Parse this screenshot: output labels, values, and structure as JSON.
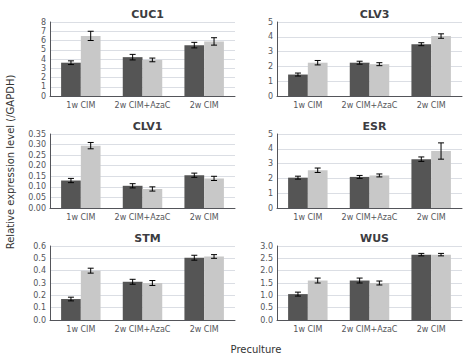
{
  "ylabel": "Relative expression level (/GAPDH)",
  "xlabel": "Preculture",
  "chart_data": [
    {
      "type": "bar",
      "title": "CUC1",
      "categories": [
        "1w CIM",
        "2w CIM+AzaC",
        "2w CIM"
      ],
      "series": [
        {
          "color": "#555555",
          "values": [
            3.6,
            4.2,
            5.5
          ],
          "errors": [
            0.2,
            0.3,
            0.3
          ]
        },
        {
          "color": "#c8c8c8",
          "values": [
            6.5,
            3.9,
            5.9
          ],
          "errors": [
            0.5,
            0.2,
            0.4
          ]
        }
      ],
      "ylim": [
        0,
        8
      ],
      "yticks": [
        0,
        1,
        2,
        3,
        4,
        5,
        6,
        7,
        8
      ],
      "grid": true
    },
    {
      "type": "bar",
      "title": "CLV3",
      "categories": [
        "1w CIM",
        "2w CIM+AzaC",
        "2w CIM"
      ],
      "series": [
        {
          "color": "#555555",
          "values": [
            1.45,
            2.25,
            3.5
          ],
          "errors": [
            0.1,
            0.1,
            0.1
          ]
        },
        {
          "color": "#c8c8c8",
          "values": [
            2.25,
            2.15,
            4.05
          ],
          "errors": [
            0.15,
            0.1,
            0.15
          ]
        }
      ],
      "ylim": [
        0,
        5
      ],
      "yticks": [
        0,
        1,
        2,
        3,
        4,
        5
      ],
      "grid": true
    },
    {
      "type": "bar",
      "title": "CLV1",
      "categories": [
        "1w CIM",
        "2w CIM+AzaC",
        "2w CIM"
      ],
      "series": [
        {
          "color": "#555555",
          "values": [
            0.13,
            0.105,
            0.155
          ],
          "errors": [
            0.01,
            0.01,
            0.01
          ]
        },
        {
          "color": "#c8c8c8",
          "values": [
            0.295,
            0.09,
            0.14
          ],
          "errors": [
            0.015,
            0.01,
            0.01
          ]
        }
      ],
      "ylim": [
        0,
        0.35
      ],
      "yticks": [
        {
          "value": 0,
          "label": "0.00"
        },
        0.05,
        {
          "value": 0.1,
          "label": "0.10"
        },
        0.15,
        {
          "value": 0.2,
          "label": "0.20"
        },
        0.25,
        {
          "value": 0.3,
          "label": "0.30"
        },
        0.35
      ],
      "grid": true
    },
    {
      "type": "bar",
      "title": "ESR",
      "categories": [
        "1w CIM",
        "2w CIM+AzaC",
        "2w CIM"
      ],
      "series": [
        {
          "color": "#555555",
          "values": [
            2.05,
            2.1,
            3.3
          ],
          "errors": [
            0.1,
            0.1,
            0.15
          ]
        },
        {
          "color": "#c8c8c8",
          "values": [
            2.55,
            2.2,
            3.85
          ],
          "errors": [
            0.15,
            0.1,
            0.55
          ]
        }
      ],
      "ylim": [
        0,
        5
      ],
      "yticks": [
        0,
        1,
        2,
        3,
        4,
        5
      ],
      "grid": true
    },
    {
      "type": "bar",
      "title": "STM",
      "categories": [
        "1w CIM",
        "2w CIM+AzaC",
        "2w CIM"
      ],
      "series": [
        {
          "color": "#555555",
          "values": [
            0.17,
            0.31,
            0.505
          ],
          "errors": [
            0.015,
            0.02,
            0.02
          ]
        },
        {
          "color": "#c8c8c8",
          "values": [
            0.4,
            0.3,
            0.515
          ],
          "errors": [
            0.02,
            0.02,
            0.015
          ]
        }
      ],
      "ylim": [
        0,
        0.6
      ],
      "yticks": [
        {
          "value": 0,
          "label": "0.0"
        },
        0.1,
        0.2,
        0.3,
        0.4,
        0.5,
        0.6
      ],
      "grid": true
    },
    {
      "type": "bar",
      "title": "WUS",
      "categories": [
        "1w CIM",
        "2w CIM+AzaC",
        "2w CIM"
      ],
      "series": [
        {
          "color": "#555555",
          "values": [
            1.05,
            1.6,
            2.65
          ],
          "errors": [
            0.08,
            0.1,
            0.05
          ]
        },
        {
          "color": "#c8c8c8",
          "values": [
            1.6,
            1.5,
            2.65
          ],
          "errors": [
            0.1,
            0.08,
            0.05
          ]
        }
      ],
      "ylim": [
        0,
        3
      ],
      "yticks": [
        {
          "value": 0,
          "label": "0.0"
        },
        0.5,
        {
          "value": 1,
          "label": "1.0"
        },
        1.5,
        {
          "value": 2,
          "label": "2.0"
        },
        2.5,
        {
          "value": 3,
          "label": "3.0"
        }
      ],
      "grid": true
    }
  ]
}
